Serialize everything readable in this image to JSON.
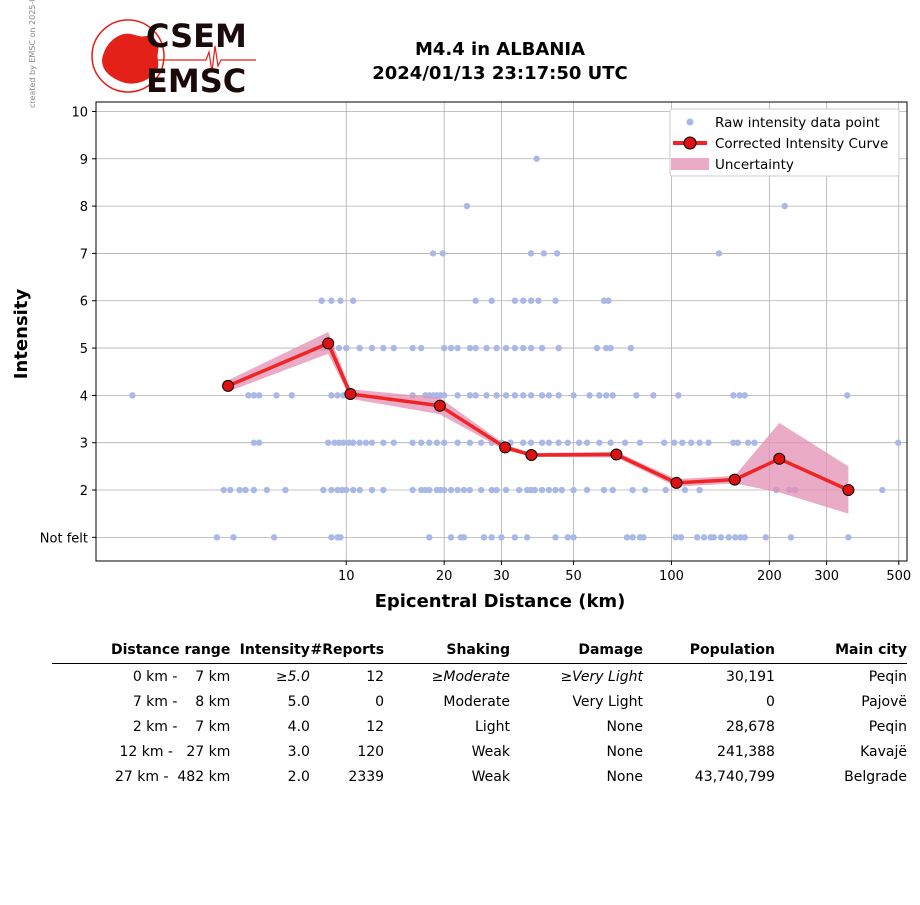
{
  "credit": "created by EMSC on 2025-07-18 07:48:49 UTC",
  "logo": {
    "line1": "CSEM",
    "line2": "EMSC",
    "colors": {
      "red": "#e32119",
      "dark": "#1a0a0a"
    }
  },
  "title": {
    "line1": "M4.4 in ALBANIA",
    "line2": "2024/01/13 23:17:50 UTC"
  },
  "chart_data": {
    "type": "scatter",
    "xlabel": "Epicentral Distance (km)",
    "ylabel": "Intensity",
    "x_scale": "log",
    "xlim": [
      1.7,
      530
    ],
    "ylim": [
      0.5,
      10.2
    ],
    "xticks": [
      10,
      20,
      30,
      50,
      100,
      200,
      300,
      500
    ],
    "yticks": [
      {
        "value": 1,
        "label": "Not felt"
      },
      {
        "value": 2,
        "label": "2"
      },
      {
        "value": 3,
        "label": "3"
      },
      {
        "value": 4,
        "label": "4"
      },
      {
        "value": 5,
        "label": "5"
      },
      {
        "value": 6,
        "label": "6"
      },
      {
        "value": 7,
        "label": "7"
      },
      {
        "value": 8,
        "label": "8"
      },
      {
        "value": 9,
        "label": "9"
      },
      {
        "value": 10,
        "label": "10"
      }
    ],
    "grid": true,
    "legend": {
      "placement": "top-right",
      "entries": [
        "Raw intensity data point",
        "Corrected Intensity Curve",
        "Uncertainty"
      ]
    },
    "colors": {
      "raw": "#aab8e8",
      "curve": "#f02424",
      "marker": "#dd1111",
      "band": "#e38fb3"
    },
    "raw_points": [
      [
        4,
        1
      ],
      [
        4.5,
        1
      ],
      [
        6,
        1
      ],
      [
        9,
        1
      ],
      [
        9.4,
        1
      ],
      [
        9.6,
        1
      ],
      [
        4.2,
        2
      ],
      [
        4.4,
        2
      ],
      [
        4.7,
        2
      ],
      [
        4.9,
        2
      ],
      [
        5.2,
        2
      ],
      [
        5.7,
        2
      ],
      [
        6.5,
        2
      ],
      [
        8.5,
        2
      ],
      [
        9,
        2
      ],
      [
        9.4,
        2
      ],
      [
        9.7,
        2
      ],
      [
        10,
        2
      ],
      [
        10.5,
        2
      ],
      [
        11,
        2
      ],
      [
        12,
        2
      ],
      [
        13,
        2
      ],
      [
        16,
        2
      ],
      [
        17,
        2
      ],
      [
        17.5,
        2
      ],
      [
        18,
        2
      ],
      [
        19,
        2
      ],
      [
        19.5,
        2
      ],
      [
        20,
        2
      ],
      [
        21,
        2
      ],
      [
        22,
        2
      ],
      [
        23,
        2
      ],
      [
        24,
        2
      ],
      [
        26,
        2
      ],
      [
        28,
        2
      ],
      [
        29,
        2
      ],
      [
        31,
        2
      ],
      [
        34,
        2
      ],
      [
        36,
        2
      ],
      [
        37,
        2
      ],
      [
        38,
        2
      ],
      [
        40,
        2
      ],
      [
        42,
        2
      ],
      [
        44,
        2
      ],
      [
        46,
        2
      ],
      [
        50,
        2
      ],
      [
        55,
        2
      ],
      [
        62,
        2
      ],
      [
        66,
        2
      ],
      [
        76,
        2
      ],
      [
        83,
        2
      ],
      [
        96,
        2
      ],
      [
        110,
        2
      ],
      [
        122,
        2
      ],
      [
        5.2,
        3
      ],
      [
        5.4,
        3
      ],
      [
        8.8,
        3
      ],
      [
        9.2,
        3
      ],
      [
        9.5,
        3
      ],
      [
        9.8,
        3
      ],
      [
        10.2,
        3
      ],
      [
        10.5,
        3
      ],
      [
        11,
        3
      ],
      [
        11.5,
        3
      ],
      [
        12,
        3
      ],
      [
        13,
        3
      ],
      [
        14,
        3
      ],
      [
        16,
        3
      ],
      [
        17,
        3
      ],
      [
        18,
        3
      ],
      [
        19,
        3
      ],
      [
        20,
        3
      ],
      [
        22,
        3
      ],
      [
        24,
        3
      ],
      [
        26,
        3
      ],
      [
        28,
        3
      ],
      [
        30,
        3
      ],
      [
        32,
        3
      ],
      [
        35,
        3
      ],
      [
        37,
        3
      ],
      [
        40,
        3
      ],
      [
        42,
        3
      ],
      [
        45,
        3
      ],
      [
        48,
        3
      ],
      [
        52,
        3
      ],
      [
        55,
        3
      ],
      [
        60,
        3
      ],
      [
        65,
        3
      ],
      [
        72,
        3
      ],
      [
        80,
        3
      ],
      [
        95,
        3
      ],
      [
        102,
        3
      ],
      [
        108,
        3
      ],
      [
        115,
        3
      ],
      [
        122,
        3
      ],
      [
        130,
        3
      ],
      [
        155,
        3
      ],
      [
        160,
        3
      ],
      [
        172,
        3
      ],
      [
        180,
        3
      ],
      [
        2.2,
        4
      ],
      [
        5,
        4
      ],
      [
        5.2,
        4
      ],
      [
        5.4,
        4
      ],
      [
        6.1,
        4
      ],
      [
        6.8,
        4
      ],
      [
        9,
        4
      ],
      [
        9.4,
        4
      ],
      [
        9.8,
        4
      ],
      [
        10.3,
        4
      ],
      [
        10.8,
        4
      ],
      [
        16,
        4
      ],
      [
        17.5,
        4
      ],
      [
        18,
        4
      ],
      [
        18.5,
        4
      ],
      [
        19,
        4
      ],
      [
        19.5,
        4
      ],
      [
        20,
        4
      ],
      [
        22,
        4
      ],
      [
        24,
        4
      ],
      [
        25,
        4
      ],
      [
        27,
        4
      ],
      [
        29,
        4
      ],
      [
        31,
        4
      ],
      [
        33,
        4
      ],
      [
        35,
        4
      ],
      [
        37,
        4
      ],
      [
        40,
        4
      ],
      [
        42,
        4
      ],
      [
        45,
        4
      ],
      [
        50,
        4
      ],
      [
        56,
        4
      ],
      [
        60,
        4
      ],
      [
        63,
        4
      ],
      [
        66,
        4
      ],
      [
        78,
        4
      ],
      [
        88,
        4
      ],
      [
        105,
        4
      ],
      [
        155,
        4
      ],
      [
        162,
        4
      ],
      [
        168,
        4
      ],
      [
        347,
        4
      ],
      [
        8.5,
        5
      ],
      [
        9,
        5
      ],
      [
        9.5,
        5
      ],
      [
        10,
        5
      ],
      [
        11,
        5
      ],
      [
        12,
        5
      ],
      [
        13,
        5
      ],
      [
        14,
        5
      ],
      [
        16,
        5
      ],
      [
        17,
        5
      ],
      [
        20,
        5
      ],
      [
        21,
        5
      ],
      [
        22,
        5
      ],
      [
        24,
        5
      ],
      [
        25,
        5
      ],
      [
        27,
        5
      ],
      [
        29,
        5
      ],
      [
        31,
        5
      ],
      [
        33,
        5
      ],
      [
        35,
        5
      ],
      [
        37,
        5
      ],
      [
        40,
        5
      ],
      [
        45,
        5
      ],
      [
        59,
        5
      ],
      [
        63,
        5
      ],
      [
        65,
        5
      ],
      [
        75,
        5
      ],
      [
        8.4,
        6
      ],
      [
        9,
        6
      ],
      [
        9.6,
        6
      ],
      [
        10.5,
        6
      ],
      [
        25,
        6
      ],
      [
        28,
        6
      ],
      [
        33,
        6
      ],
      [
        35,
        6
      ],
      [
        37,
        6
      ],
      [
        39,
        6
      ],
      [
        44,
        6
      ],
      [
        62,
        6
      ],
      [
        64,
        6
      ],
      [
        18.5,
        7
      ],
      [
        19.8,
        7
      ],
      [
        37,
        7
      ],
      [
        40.5,
        7
      ],
      [
        44.5,
        7
      ],
      [
        140,
        7
      ],
      [
        23.5,
        8
      ],
      [
        223,
        8
      ],
      [
        38.5,
        9
      ],
      [
        498,
        3
      ],
      [
        445,
        2
      ],
      [
        210,
        2
      ],
      [
        240,
        2
      ],
      [
        230,
        2
      ],
      [
        142,
        1
      ],
      [
        168,
        1
      ],
      [
        195,
        1
      ],
      [
        233,
        1
      ],
      [
        350,
        1
      ],
      [
        107,
        1
      ],
      [
        103,
        1
      ],
      [
        73,
        1
      ],
      [
        76,
        1
      ],
      [
        80,
        1
      ],
      [
        82,
        1
      ],
      [
        26.5,
        1
      ],
      [
        28,
        1
      ],
      [
        30,
        1
      ],
      [
        33,
        1
      ],
      [
        36,
        1
      ],
      [
        44,
        1
      ],
      [
        48,
        1
      ],
      [
        50,
        1
      ],
      [
        18,
        1
      ],
      [
        21,
        1
      ],
      [
        22.5,
        1
      ],
      [
        23,
        1
      ],
      [
        120,
        1
      ],
      [
        126,
        1
      ],
      [
        132,
        1
      ],
      [
        135,
        1
      ],
      [
        150,
        1
      ],
      [
        157,
        1
      ],
      [
        163,
        1
      ]
    ],
    "curve": [
      {
        "x": 4.33,
        "y": 4.2
      },
      {
        "x": 8.8,
        "y": 5.1
      },
      {
        "x": 10.3,
        "y": 4.03
      },
      {
        "x": 19.4,
        "y": 3.78
      },
      {
        "x": 30.8,
        "y": 2.9
      },
      {
        "x": 37.1,
        "y": 2.74
      },
      {
        "x": 67.7,
        "y": 2.75
      },
      {
        "x": 103.6,
        "y": 2.15
      },
      {
        "x": 156.5,
        "y": 2.22
      },
      {
        "x": 214.6,
        "y": 2.66
      },
      {
        "x": 350,
        "y": 2.0
      }
    ],
    "uncertainty": [
      {
        "x": 4.33,
        "lo": 4.08,
        "hi": 4.32
      },
      {
        "x": 8.8,
        "lo": 4.88,
        "hi": 5.34
      },
      {
        "x": 10.3,
        "lo": 3.93,
        "hi": 4.13
      },
      {
        "x": 19.4,
        "lo": 3.6,
        "hi": 3.95
      },
      {
        "x": 30.8,
        "lo": 2.84,
        "hi": 2.96
      },
      {
        "x": 37.1,
        "lo": 2.7,
        "hi": 2.78
      },
      {
        "x": 67.7,
        "lo": 2.69,
        "hi": 2.81
      },
      {
        "x": 103.6,
        "lo": 2.07,
        "hi": 2.23
      },
      {
        "x": 156.5,
        "lo": 2.14,
        "hi": 2.3
      },
      {
        "x": 214.6,
        "lo": 1.95,
        "hi": 3.42
      },
      {
        "x": 350,
        "lo": 1.5,
        "hi": 2.5
      }
    ]
  },
  "table": {
    "headers": [
      "Distance range",
      "Intensity",
      "#Reports",
      "Shaking",
      "Damage",
      "Population",
      "Main city"
    ],
    "rows": [
      {
        "range": "0 km -    7 km",
        "intensity": "≥5.0",
        "reports": "12",
        "shaking": "≥Moderate",
        "damage": "≥Very Light",
        "population": "30,191",
        "city": "Peqin",
        "italic": true
      },
      {
        "range": "7 km -    8 km",
        "intensity": "5.0",
        "reports": "0",
        "shaking": "Moderate",
        "damage": "Very Light",
        "population": "0",
        "city": "Pajovë",
        "italic": false
      },
      {
        "range": "2 km -    7 km",
        "intensity": "4.0",
        "reports": "12",
        "shaking": "Light",
        "damage": "None",
        "population": "28,678",
        "city": "Peqin",
        "italic": false
      },
      {
        "range": "12 km -   27 km",
        "intensity": "3.0",
        "reports": "120",
        "shaking": "Weak",
        "damage": "None",
        "population": "241,388",
        "city": "Kavajë",
        "italic": false
      },
      {
        "range": "27 km -  482 km",
        "intensity": "2.0",
        "reports": "2339",
        "shaking": "Weak",
        "damage": "None",
        "population": "43,740,799",
        "city": "Belgrade",
        "italic": false
      }
    ]
  }
}
